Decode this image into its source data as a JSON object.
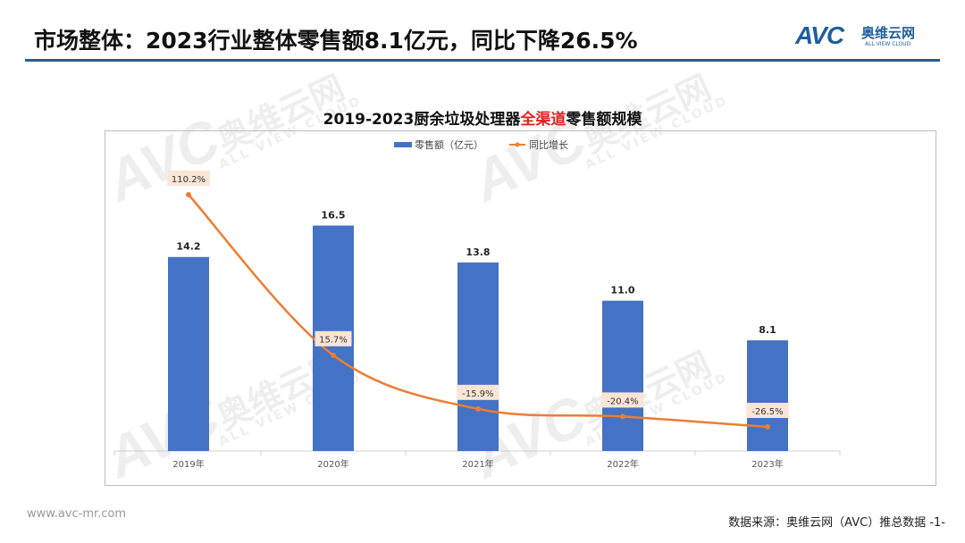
{
  "header": {
    "title": "市场整体：2023行业整体零售额8.1亿元，同比下降26.5%",
    "logo": {
      "mark": "AVC",
      "cn": "奥维云网",
      "en": "ALL VIEW CLOUD"
    },
    "accent_color": "#1f5f9c"
  },
  "watermark": {
    "mark": "AVC",
    "cn": "奥维云网",
    "en": "ALL VIEW CLOUD"
  },
  "chart_data": {
    "type": "bar+line",
    "title_parts": [
      "2019-2023厨余垃圾处理器",
      "全渠道",
      "零售额规模"
    ],
    "categories": [
      "2019年",
      "2020年",
      "2021年",
      "2022年",
      "2023年"
    ],
    "series": [
      {
        "name": "零售额（亿元）",
        "type": "bar",
        "color": "#4472c4",
        "values": [
          14.2,
          16.5,
          13.8,
          11.0,
          8.1
        ],
        "labels": [
          "14.2",
          "16.5",
          "13.8",
          "11.0",
          "8.1"
        ]
      },
      {
        "name": "同比增长",
        "type": "line",
        "color": "#ed7d31",
        "smooth": true,
        "values": [
          110.2,
          15.7,
          -15.9,
          -20.4,
          -26.5
        ],
        "labels": [
          "110.2%",
          "15.7%",
          "-15.9%",
          "-20.4%",
          "-26.5%"
        ]
      }
    ],
    "legend": "top-center",
    "grid": false
  },
  "footer": {
    "website": "www.avc-mr.com",
    "source": "数据来源：奥维云网（AVC）推总数据 -1-"
  }
}
